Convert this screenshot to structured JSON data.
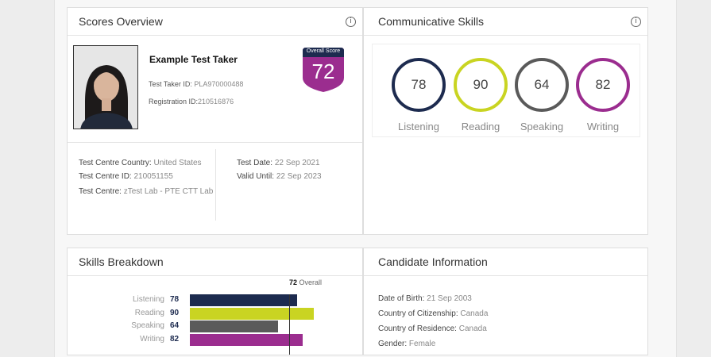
{
  "scores_overview": {
    "title": "Scores Overview",
    "candidate_name": "Example Test Taker",
    "test_taker_id_label": "Test Taker ID:",
    "test_taker_id": "PLA970000488",
    "registration_id_label": "Registration ID:",
    "registration_id": "210516876",
    "overall_score_label": "Overall Score",
    "overall_score": "72",
    "badge_color": "#9b2d8f",
    "test_centre_country_label": "Test Centre Country:",
    "test_centre_country": "United States",
    "test_centre_id_label": "Test Centre ID:",
    "test_centre_id": "210051155",
    "test_centre_label": "Test Centre:",
    "test_centre": "zTest Lab - PTE CTT Lab",
    "test_date_label": "Test Date:",
    "test_date": "22 Sep 2021",
    "valid_until_label": "Valid Until:",
    "valid_until": "22 Sep 2023"
  },
  "communicative_skills": {
    "title": "Communicative Skills",
    "skills": [
      {
        "label": "Listening",
        "score": "78",
        "color": "#1d2b4f"
      },
      {
        "label": "Reading",
        "score": "90",
        "color": "#c9d422"
      },
      {
        "label": "Speaking",
        "score": "64",
        "color": "#5a5a5a"
      },
      {
        "label": "Writing",
        "score": "82",
        "color": "#9b2d8f"
      }
    ]
  },
  "skills_breakdown": {
    "title": "Skills Breakdown",
    "overall_value": "72",
    "overall_label": "Overall",
    "axis_max": 90,
    "bars": [
      {
        "label": "Listening",
        "value": 78,
        "color": "#1d2b4f"
      },
      {
        "label": "Reading",
        "value": 90,
        "color": "#c9d422"
      },
      {
        "label": "Speaking",
        "value": 64,
        "color": "#5a5a5a"
      },
      {
        "label": "Writing",
        "value": 82,
        "color": "#9b2d8f"
      }
    ]
  },
  "candidate_information": {
    "title": "Candidate Information",
    "dob_label": "Date of Birth:",
    "dob": "21 Sep 2003",
    "citizenship_label": "Country of Citizenship:",
    "citizenship": "Canada",
    "residence_label": "Country of Residence:",
    "residence": "Canada",
    "gender_label": "Gender:",
    "gender": "Female"
  }
}
